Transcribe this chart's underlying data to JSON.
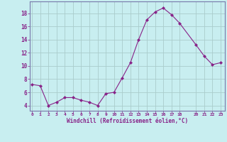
{
  "x": [
    0,
    1,
    2,
    3,
    4,
    5,
    6,
    7,
    8,
    9,
    10,
    11,
    12,
    13,
    14,
    15,
    16,
    17,
    18,
    20,
    21,
    22,
    23
  ],
  "y": [
    7.2,
    7.0,
    4.0,
    4.5,
    5.2,
    5.2,
    4.8,
    4.5,
    4.0,
    5.8,
    6.0,
    8.2,
    10.5,
    14.0,
    17.0,
    18.2,
    18.8,
    17.8,
    16.5,
    13.2,
    11.5,
    10.2,
    10.5
  ],
  "line_color": "#882288",
  "marker_color": "#882288",
  "bg_color": "#c8eef0",
  "grid_color": "#aacccc",
  "xlabel": "Windchill (Refroidissement éolien,°C)",
  "tick_color": "#882288",
  "ylabel_ticks": [
    4,
    6,
    8,
    10,
    12,
    14,
    16,
    18
  ],
  "xticks": [
    0,
    1,
    2,
    3,
    4,
    5,
    6,
    7,
    8,
    9,
    10,
    11,
    12,
    13,
    14,
    15,
    16,
    17,
    18,
    20,
    21,
    22,
    23
  ],
  "ylim": [
    3.2,
    19.8
  ],
  "xlim": [
    -0.3,
    23.5
  ],
  "spine_color": "#7777aa"
}
